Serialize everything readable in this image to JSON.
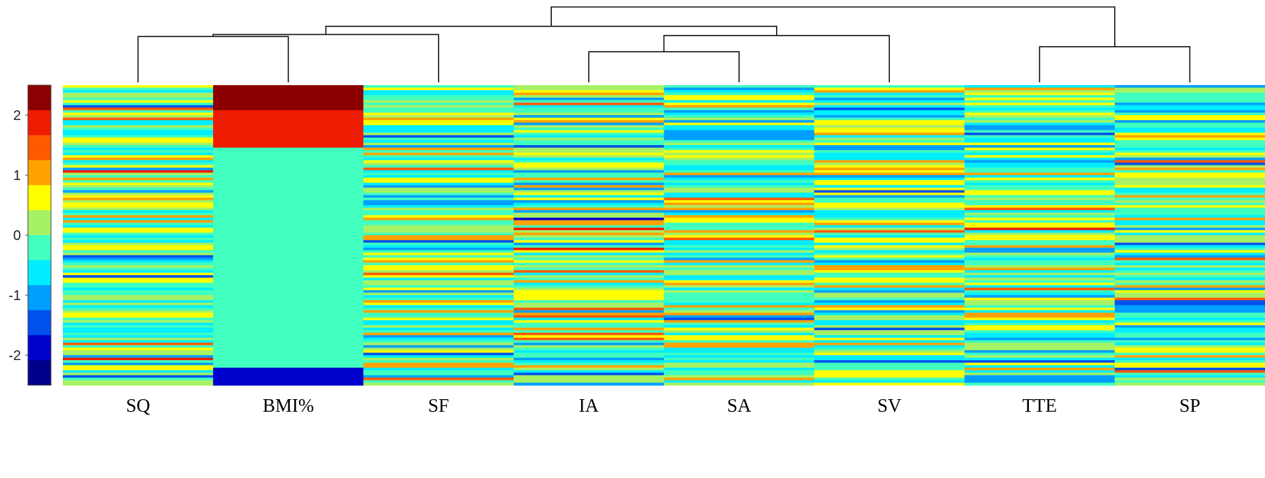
{
  "chart_data": {
    "type": "heatmap",
    "title": "",
    "xlabel": "",
    "ylabel": "",
    "columns": [
      "SQ",
      "BMI%",
      "SF",
      "IA",
      "SA",
      "SV",
      "TTE",
      "SP"
    ],
    "n_rows": 120,
    "value_range": [
      -2.5,
      2.5
    ],
    "colorbar": {
      "ticks": [
        2,
        1,
        0,
        -1,
        -2
      ],
      "tick_labels": [
        "2",
        "1",
        "0",
        "-1",
        "-2"
      ],
      "levels": 11,
      "colors": [
        "#8b0000",
        "#ee1c00",
        "#ff5a00",
        "#ffa200",
        "#ffff00",
        "#a6f264",
        "#40ffbf",
        "#00eeff",
        "#009fff",
        "#0050ee",
        "#0000cc",
        "#00008b"
      ],
      "colors_order": "top-to-bottom"
    },
    "dendrogram": {
      "merge_order": [
        [
          "IA",
          "SA"
        ],
        [
          "TTE",
          "SP"
        ],
        [
          "SQ",
          "BMI%"
        ],
        [
          "SQ+BMI%",
          "SF"
        ],
        [
          "IA+SA",
          "SV"
        ],
        [
          "SQ+BMI%+SF",
          "IA+SA+SV"
        ],
        [
          "all-left",
          "TTE+SP"
        ]
      ],
      "merge_heights": [
        0.3,
        0.35,
        0.45,
        0.47,
        0.46,
        0.55,
        0.74
      ]
    },
    "notable_rows": {
      "BMI%": [
        {
          "from_row": 0,
          "to_row": 9,
          "value": 2.3
        },
        {
          "from_row": 10,
          "to_row": 24,
          "value": 1.7
        },
        {
          "from_row": 25,
          "to_row": 112,
          "value": 0.0
        },
        {
          "from_row": 113,
          "to_row": 119,
          "value": -2.0
        }
      ]
    }
  }
}
